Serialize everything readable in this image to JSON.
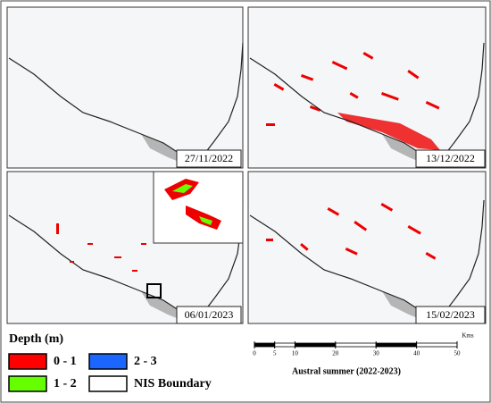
{
  "panels": [
    {
      "date": "27/11/2022"
    },
    {
      "date": "13/12/2022"
    },
    {
      "date": "06/01/2023"
    },
    {
      "date": "15/02/2023"
    }
  ],
  "legend": {
    "title": "Depth (m)",
    "items": [
      {
        "label": "0 - 1",
        "color": "#ff0000"
      },
      {
        "label": "1 - 2",
        "color": "#66ff00"
      },
      {
        "label": "2 - 3",
        "color": "#1a66ff"
      },
      {
        "label": "NIS Boundary",
        "color": "#ffffff"
      }
    ]
  },
  "scale_bar": {
    "unit": "Kms",
    "ticks": [
      0,
      5,
      10,
      20,
      30,
      40,
      50
    ]
  },
  "caption": "Austral summer (2022-2023)"
}
